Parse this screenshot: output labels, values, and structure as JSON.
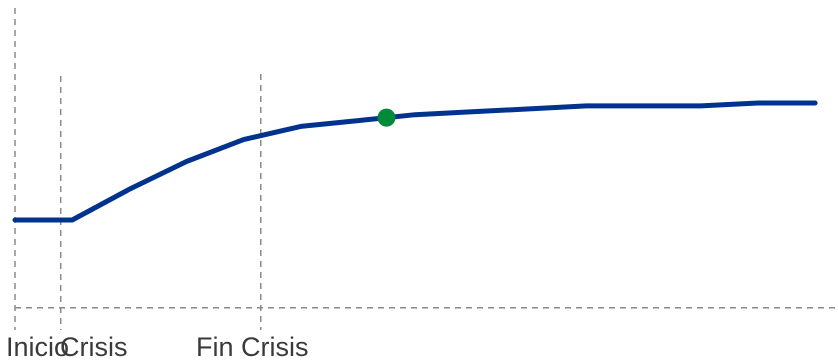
{
  "chart_data": {
    "type": "line",
    "title": "",
    "xlabel": "",
    "ylabel": "",
    "grid": false,
    "x": [
      0,
      1,
      2,
      3,
      4,
      5,
      6,
      7,
      8,
      9,
      10,
      11,
      12,
      13,
      14
    ],
    "series": [
      {
        "values": [
          0,
          0,
          21,
          40,
          55,
          64,
          68,
          72,
          74,
          76,
          78,
          78,
          78,
          80,
          80
        ],
        "color": "#00338d"
      }
    ],
    "highlight_point": {
      "x": 6.5,
      "y": 70,
      "color": "#008a3a"
    },
    "ylim": [
      -60,
      110
    ],
    "xlim": [
      0,
      14.4
    ],
    "baseline_y": -60,
    "vertical_markers": [
      {
        "x": 0,
        "label": "Inicio"
      },
      {
        "x": 0.8,
        "label": "Crisis"
      },
      {
        "x": 4.3,
        "label": "Fin Crisis"
      }
    ]
  }
}
